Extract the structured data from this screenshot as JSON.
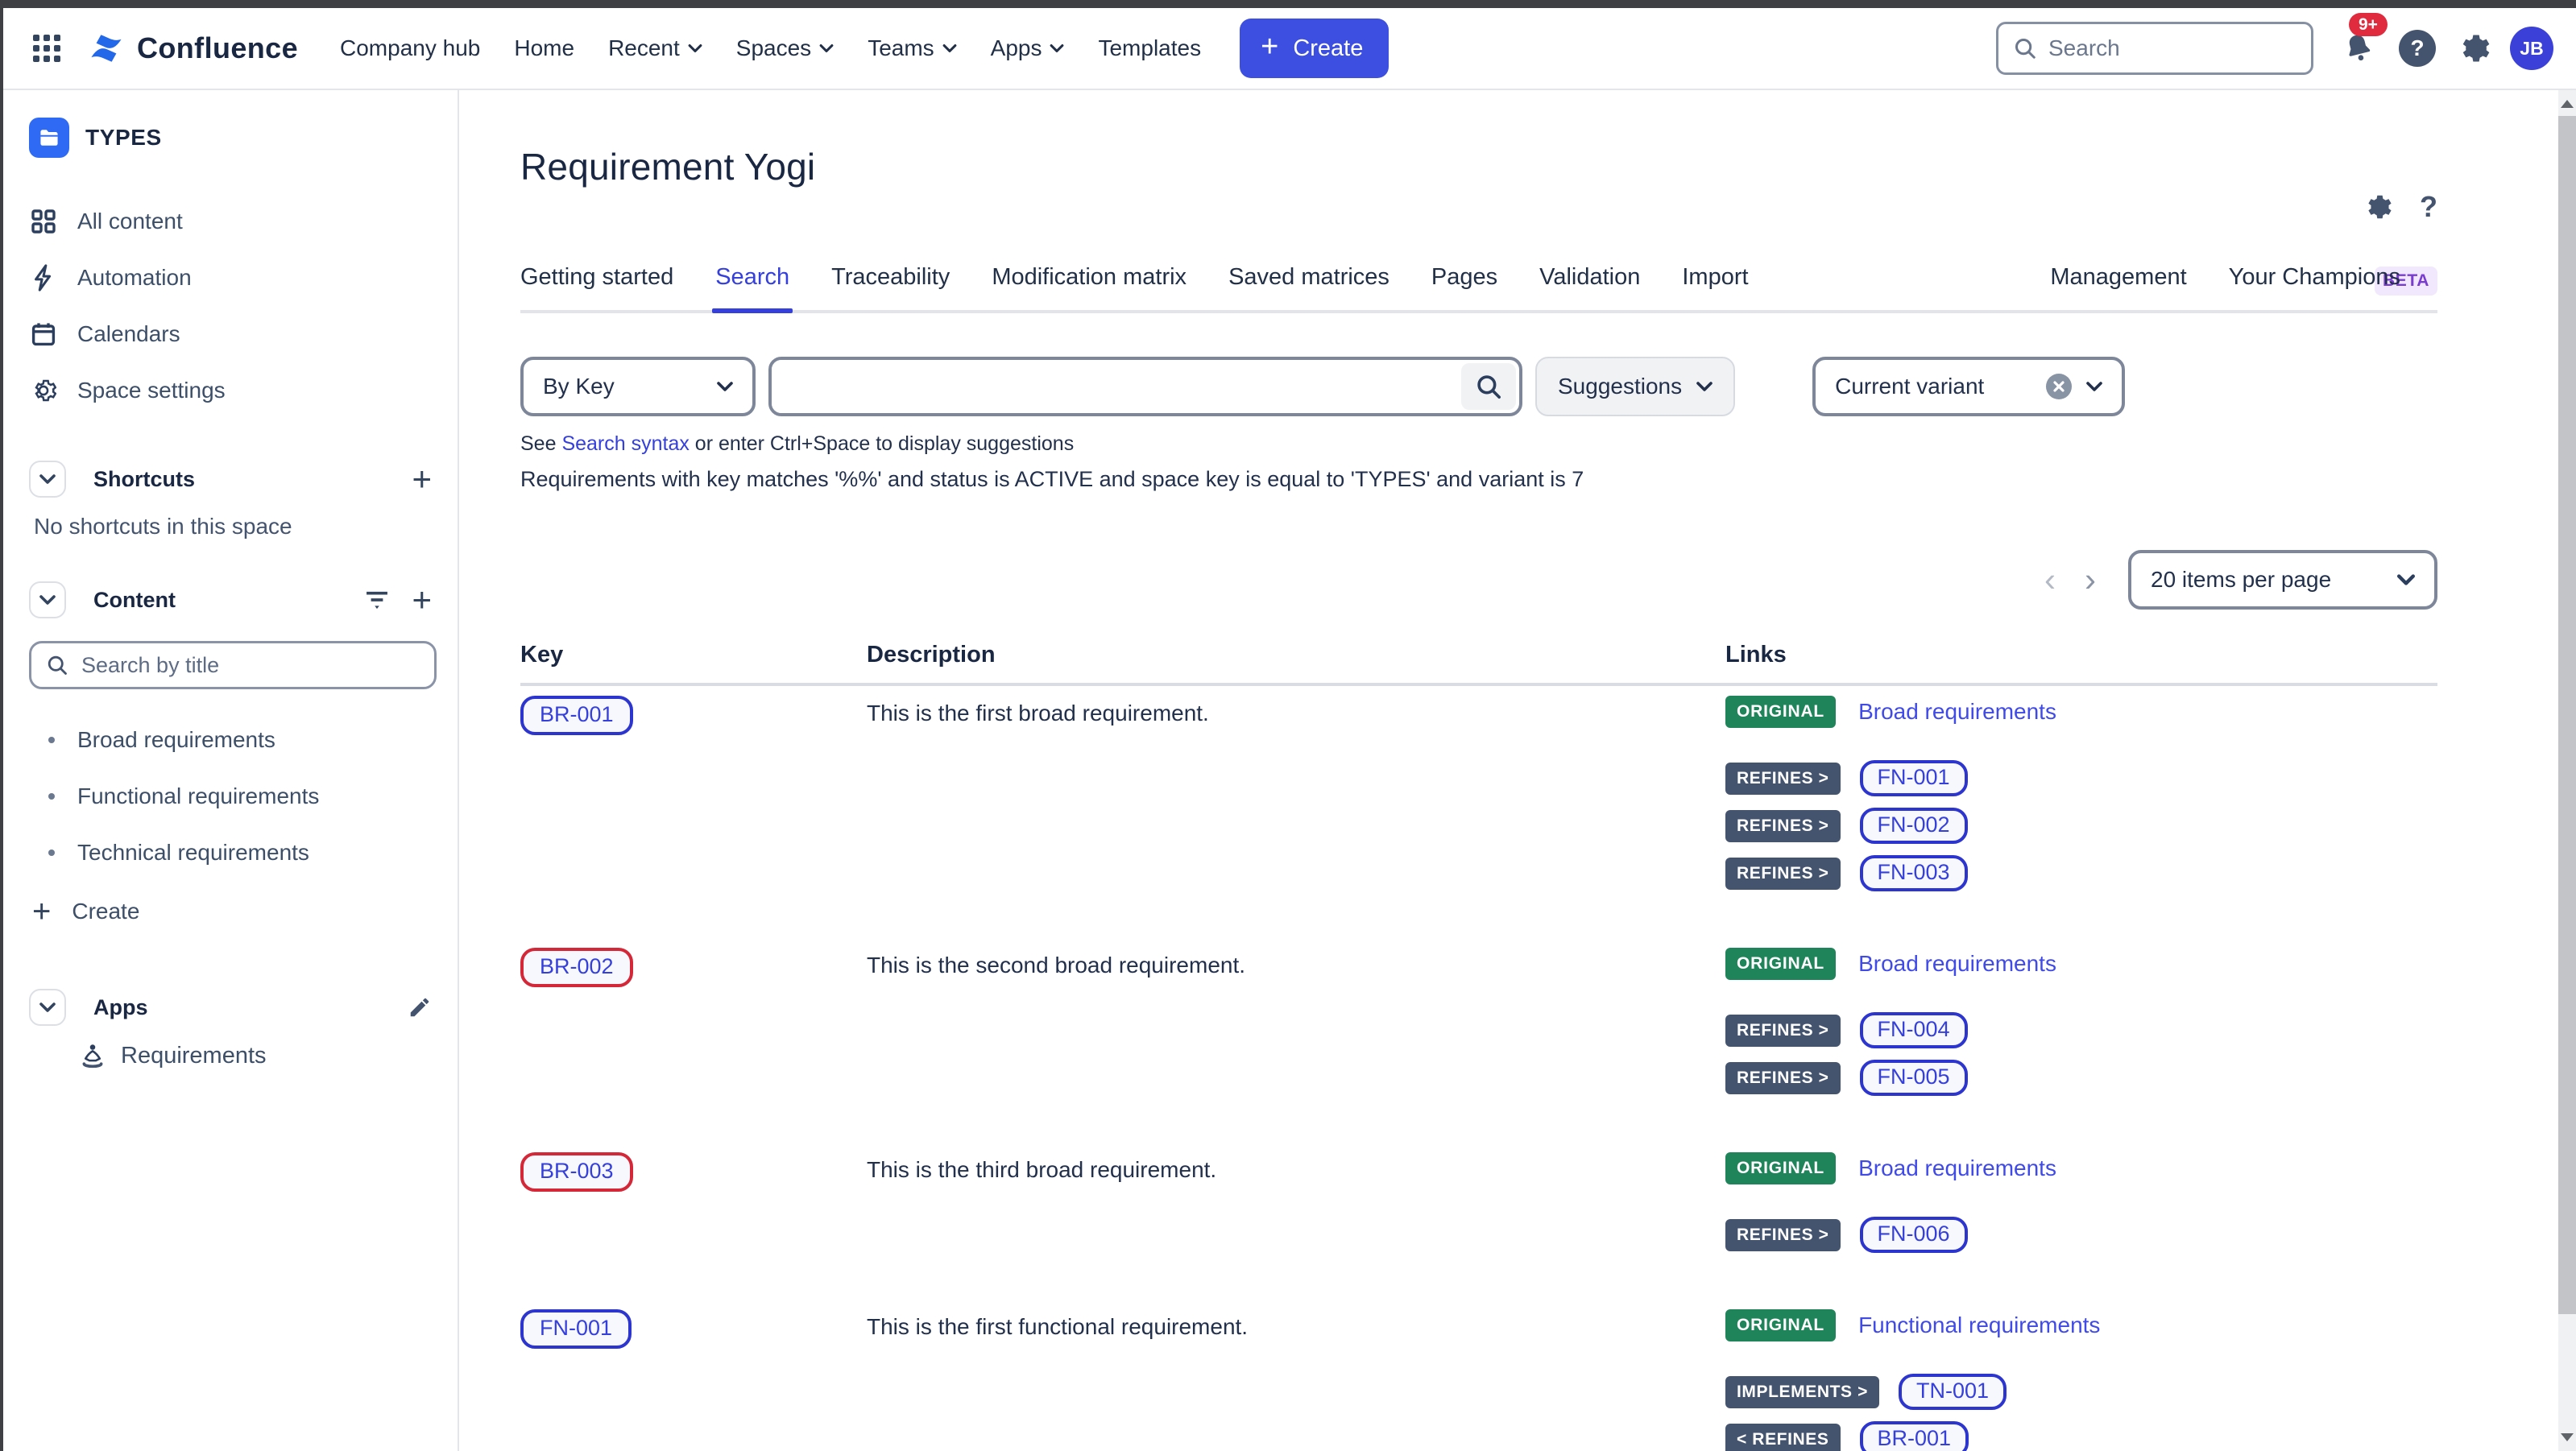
{
  "topnav": {
    "product": "Confluence",
    "items": [
      {
        "label": "Company hub",
        "chevron": false
      },
      {
        "label": "Home",
        "chevron": false
      },
      {
        "label": "Recent",
        "chevron": true
      },
      {
        "label": "Spaces",
        "chevron": true
      },
      {
        "label": "Teams",
        "chevron": true
      },
      {
        "label": "Apps",
        "chevron": true
      },
      {
        "label": "Templates",
        "chevron": false
      }
    ],
    "create_label": "Create",
    "search_placeholder": "Search",
    "notification_count": "9+",
    "avatar_initials": "JB"
  },
  "sidebar": {
    "space_name": "TYPES",
    "nav_items": [
      {
        "icon": "all-content",
        "label": "All content"
      },
      {
        "icon": "lightning",
        "label": "Automation"
      },
      {
        "icon": "calendar",
        "label": "Calendars"
      },
      {
        "icon": "gear",
        "label": "Space settings"
      }
    ],
    "shortcuts": {
      "title": "Shortcuts",
      "empty": "No shortcuts in this space"
    },
    "content": {
      "title": "Content",
      "search_placeholder": "Search by title",
      "pages": [
        "Broad requirements",
        "Functional requirements",
        "Technical requirements"
      ],
      "create_label": "Create"
    },
    "apps": {
      "title": "Apps",
      "items": [
        "Requirements"
      ]
    }
  },
  "main": {
    "title": "Requirement Yogi",
    "tabs": [
      "Getting started",
      "Search",
      "Traceability",
      "Modification matrix",
      "Saved matrices",
      "Pages",
      "Validation",
      "Import"
    ],
    "active_tab": "Search",
    "right_tabs": [
      "Management",
      "Your Champions"
    ],
    "beta_label": "BETA",
    "search": {
      "mode": "By Key",
      "input_value": "",
      "suggestions_label": "Suggestions",
      "variant_label": "Current variant",
      "help_prefix": "See ",
      "help_link": "Search syntax",
      "help_suffix": " or enter Ctrl+Space to display suggestions",
      "query_summary": "Requirements with key matches '%%' and status is ACTIVE and space key is equal to 'TYPES' and variant is 7"
    },
    "pagination": {
      "prev": "‹",
      "next": "›",
      "items_per_page": "20 items per page"
    },
    "table": {
      "columns": [
        "Key",
        "Description",
        "Links"
      ],
      "rows": [
        {
          "key": "BR-001",
          "key_state": "blue",
          "description": "This is the first broad requirement.",
          "origin": {
            "badge": "ORIGINAL",
            "space": "Broad requirements"
          },
          "relations": [
            {
              "badge": "REFINES >",
              "target": "FN-001"
            },
            {
              "badge": "REFINES >",
              "target": "FN-002"
            },
            {
              "badge": "REFINES >",
              "target": "FN-003"
            }
          ]
        },
        {
          "key": "BR-002",
          "key_state": "red",
          "description": "This is the second broad requirement.",
          "origin": {
            "badge": "ORIGINAL",
            "space": "Broad requirements"
          },
          "relations": [
            {
              "badge": "REFINES >",
              "target": "FN-004"
            },
            {
              "badge": "REFINES >",
              "target": "FN-005"
            }
          ]
        },
        {
          "key": "BR-003",
          "key_state": "red",
          "description": "This is the third broad requirement.",
          "origin": {
            "badge": "ORIGINAL",
            "space": "Broad requirements"
          },
          "relations": [
            {
              "badge": "REFINES >",
              "target": "FN-006"
            }
          ]
        },
        {
          "key": "FN-001",
          "key_state": "blue",
          "description": "This is the first functional requirement.",
          "origin": {
            "badge": "ORIGINAL",
            "space": "Functional requirements"
          },
          "relations": [
            {
              "badge": "IMPLEMENTS >",
              "target": "TN-001"
            },
            {
              "badge": "< REFINES",
              "target": "BR-001"
            }
          ]
        }
      ]
    }
  },
  "colors": {
    "accent_indigo": "#3540dc",
    "create_blue": "#3d4fe0",
    "space_tile_blue": "#2f6af5",
    "original_green": "#1f845a",
    "relation_slate": "#44546f",
    "red_key_border": "#d42838",
    "beta_purple": "#7a3bd0",
    "notification_red": "#df2b3d"
  }
}
